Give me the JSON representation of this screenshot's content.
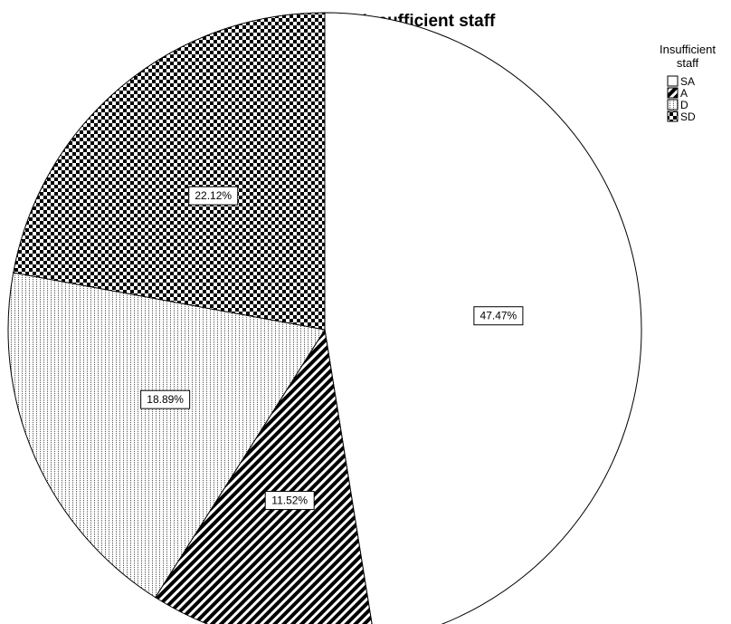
{
  "chart_data": {
    "type": "pie",
    "title": "Insufficient staff",
    "legend": {
      "title_lines": [
        "Insufficient",
        "staff"
      ],
      "placement": "top-right"
    },
    "slices": [
      {
        "label": "SA",
        "value": 47.47,
        "display": "47.47%",
        "pattern": "white"
      },
      {
        "label": "A",
        "value": 11.52,
        "display": "11.52%",
        "pattern": "diagonal-stripes"
      },
      {
        "label": "D",
        "value": 18.89,
        "display": "18.89%",
        "pattern": "vertical-dots"
      },
      {
        "label": "SD",
        "value": 22.12,
        "display": "22.12%",
        "pattern": "checkerboard"
      }
    ],
    "start_angle": "12 o'clock",
    "direction": "clockwise"
  }
}
